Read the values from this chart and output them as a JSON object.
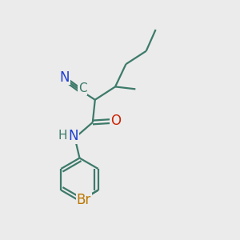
{
  "bg_color": "#ebebeb",
  "bond_color": "#3d7a6a",
  "N_color": "#2040d0",
  "O_color": "#cc2200",
  "Br_color": "#bb7700",
  "C_color": "#3d7a6a",
  "H_color": "#3d7a6a",
  "line_width": 1.6,
  "font_size": 12,
  "figsize": [
    3.0,
    3.0
  ],
  "dpi": 100,
  "xlim": [
    0,
    10
  ],
  "ylim": [
    0,
    10
  ]
}
